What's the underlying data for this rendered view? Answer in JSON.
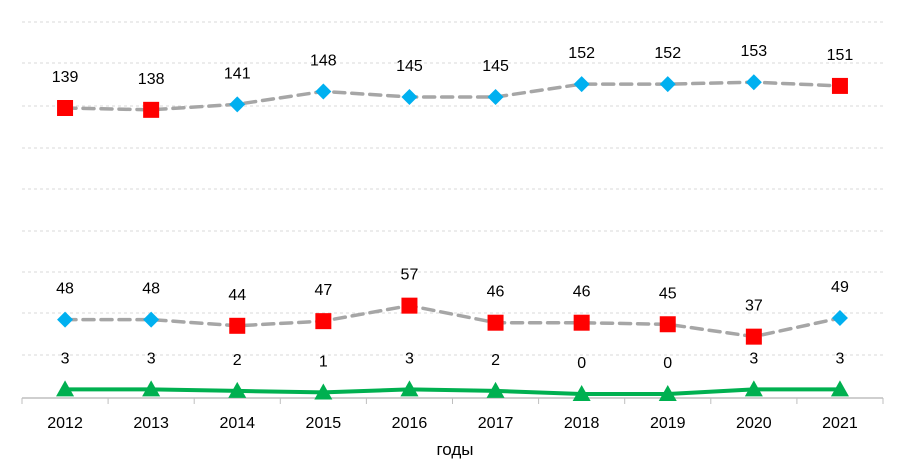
{
  "chart_data": {
    "type": "line",
    "categories": [
      "2012",
      "2013",
      "2014",
      "2015",
      "2016",
      "2017",
      "2018",
      "2019",
      "2020",
      "2021"
    ],
    "xlabel": "годы",
    "ylabel": "",
    "grid": true,
    "legend": "none",
    "series": [
      {
        "values": [
          139,
          138,
          141,
          148,
          145,
          145,
          152,
          152,
          153,
          151
        ],
        "line_color": "#a6a6a6",
        "line_style": "dashed",
        "markers": [
          "square",
          "square",
          "diamond",
          "diamond",
          "diamond",
          "diamond",
          "diamond",
          "diamond",
          "diamond",
          "square"
        ]
      },
      {
        "values": [
          48,
          48,
          44,
          47,
          57,
          46,
          46,
          45,
          37,
          49
        ],
        "line_color": "#a6a6a6",
        "line_style": "dashed",
        "markers": [
          "diamond",
          "diamond",
          "square",
          "square",
          "square",
          "square",
          "square",
          "square",
          "square",
          "diamond"
        ]
      },
      {
        "values": [
          3,
          3,
          2,
          1,
          3,
          2,
          0,
          0,
          3,
          3
        ],
        "line_color": "#00b050",
        "line_style": "solid",
        "markers": [
          "triangle",
          "triangle",
          "triangle",
          "triangle",
          "triangle",
          "triangle",
          "triangle",
          "triangle",
          "triangle",
          "triangle"
        ]
      }
    ],
    "colors": {
      "square": "#ff0000",
      "diamond": "#00b0f0",
      "triangle": "#00b050",
      "grid": "#d9d9d9",
      "axis": "#bfbfbf"
    }
  }
}
